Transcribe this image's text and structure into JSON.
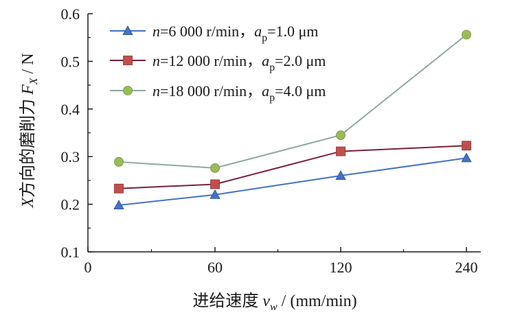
{
  "chart_data": {
    "type": "line",
    "title": "",
    "xlabel": "进给速度 v_w / (mm/min)",
    "ylabel": "X方向的磨削力 F_X / N",
    "categories": [
      "15",
      "60",
      "120",
      "240"
    ],
    "x_tick_labels": [
      "0",
      "60",
      "120",
      "240"
    ],
    "y_tick_labels": [
      "0.1",
      "0.2",
      "0.3",
      "0.4",
      "0.5",
      "0.6"
    ],
    "ylim": [
      0.1,
      0.6
    ],
    "grid": false,
    "legend_position": "top-left",
    "series": [
      {
        "name": "n=6 000 r/min，a_p=1.0 μm",
        "color": "#4472c4",
        "marker": "triangle",
        "values": [
          0.198,
          0.22,
          0.26,
          0.297
        ]
      },
      {
        "name": "n=12 000 r/min，a_p=2.0 μm",
        "color": "#7b1f3a",
        "marker_color": "#c0504d",
        "marker": "square",
        "values": [
          0.233,
          0.242,
          0.311,
          0.323
        ]
      },
      {
        "name": "n=18 000 r/min，a_p=4.0 μm",
        "color": "#8fa8a0",
        "marker_color": "#9bbb59",
        "marker": "circle",
        "values": [
          0.289,
          0.276,
          0.345,
          0.556
        ]
      }
    ]
  }
}
